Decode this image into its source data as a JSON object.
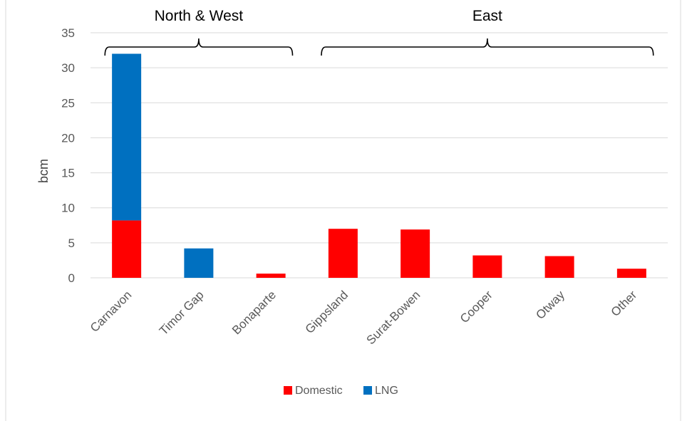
{
  "chart_data": {
    "type": "bar",
    "stacked": true,
    "categories": [
      "Carnavon",
      "Timor Gap",
      "Bonaparte",
      "Gippsland",
      "Surat-Bowen",
      "Cooper",
      "Otway",
      "Other"
    ],
    "series": [
      {
        "name": "Domestic",
        "color": "#ff0000",
        "values": [
          8.2,
          0,
          0.6,
          7.0,
          6.9,
          3.2,
          3.1,
          1.3
        ]
      },
      {
        "name": "LNG",
        "color": "#0070c0",
        "values": [
          23.8,
          4.2,
          0,
          0,
          0,
          0,
          0,
          0
        ]
      }
    ],
    "ylabel": "bcm",
    "ylim": [
      0,
      35
    ],
    "yticks": [
      0,
      5,
      10,
      15,
      20,
      25,
      30,
      35
    ],
    "grid": true,
    "legend": "bottom",
    "groups": [
      {
        "label": "North & West",
        "from": "Carnavon",
        "to": "Bonaparte"
      },
      {
        "label": "East",
        "from": "Gippsland",
        "to": "Other"
      }
    ]
  }
}
